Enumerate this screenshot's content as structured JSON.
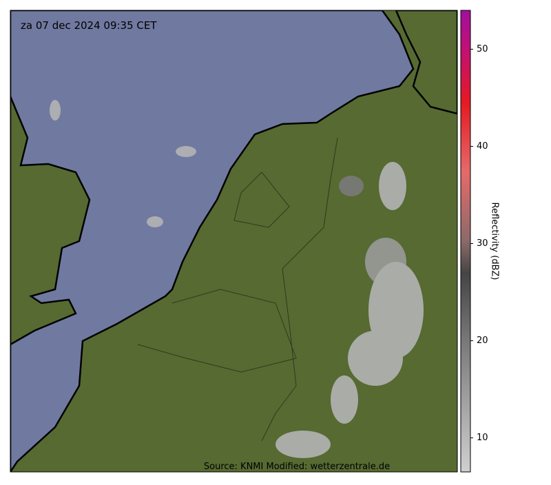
{
  "map": {
    "timestamp": "za 07 dec 2024 09:35 CET",
    "source": "Source: KNMI Modified: wetterzentrale.de"
  },
  "colorbar": {
    "label": "Reflectivity (dBZ)",
    "lim": [
      6.5,
      54
    ],
    "ticks": [
      10,
      20,
      30,
      40,
      50
    ]
  }
}
